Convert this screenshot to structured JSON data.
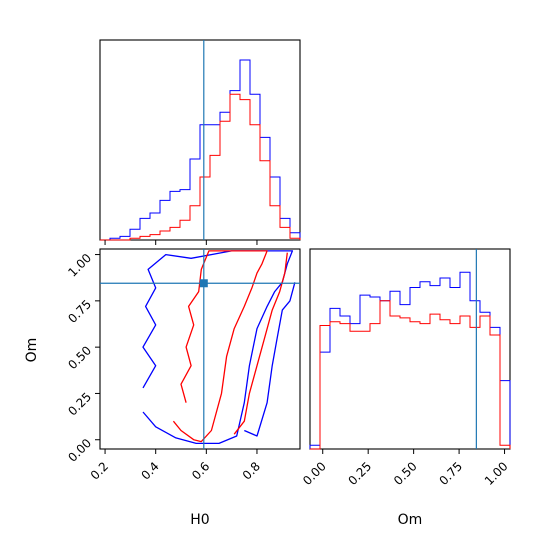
{
  "chart_data": {
    "type": "corner",
    "parameters": [
      "H0",
      "Om"
    ],
    "truths": {
      "H0": 0.59,
      "Om": 0.845
    },
    "colors": {
      "blue": "#0000ff",
      "red": "#ff0000",
      "truth": "#1f77b4"
    },
    "panels": [
      {
        "id": "hist_H0",
        "type": "histogram-step",
        "x": "H0",
        "xlim": [
          0.18,
          0.97
        ],
        "bin_edges": [
          0.18,
          0.2195,
          0.259,
          0.2985,
          0.338,
          0.3775,
          0.417,
          0.4565,
          0.496,
          0.5355,
          0.575,
          0.6145,
          0.654,
          0.6935,
          0.733,
          0.7725,
          0.812,
          0.8515,
          0.891,
          0.9305,
          0.97
        ],
        "series": [
          {
            "name": "",
            "color": "#0000ff",
            "values": [
              0,
              0.01,
              0.02,
              0.06,
              0.12,
              0.15,
              0.22,
              0.27,
              0.28,
              0.45,
              0.64,
              0.64,
              0.71,
              0.83,
              1.0,
              0.81,
              0.57,
              0.35,
              0.12,
              0.04
            ]
          },
          {
            "name": "",
            "color": "#ff0000",
            "values": [
              0,
              0,
              0,
              0.01,
              0.02,
              0.03,
              0.05,
              0.07,
              0.11,
              0.19,
              0.35,
              0.47,
              0.66,
              0.81,
              0.78,
              0.64,
              0.44,
              0.19,
              0.07,
              0.01
            ]
          }
        ]
      },
      {
        "id": "contour_H0_Om",
        "type": "contour",
        "x": "H0",
        "y": "Om",
        "xlim": [
          0.18,
          0.97
        ],
        "ylim": [
          -0.05,
          1.03
        ],
        "xticks": [
          "0.2",
          "0.4",
          "0.6",
          "0.8"
        ],
        "yticks": [
          "0.00",
          "0.25",
          "0.50",
          "0.75",
          "1.00"
        ],
        "series": [
          {
            "name": "",
            "color": "#0000ff",
            "levels": [
              [
                [
                  0.35,
                  0.15
                ],
                [
                  0.4,
                  0.07
                ],
                [
                  0.48,
                  0.01
                ],
                [
                  0.56,
                  -0.02
                ],
                [
                  0.65,
                  -0.02
                ],
                [
                  0.72,
                  0.02
                ],
                [
                  0.75,
                  0.2
                ],
                [
                  0.77,
                  0.4
                ],
                [
                  0.8,
                  0.6
                ],
                [
                  0.84,
                  0.72
                ],
                [
                  0.87,
                  0.8
                ],
                [
                  0.9,
                  0.85
                ],
                [
                  0.92,
                  0.95
                ],
                [
                  0.94,
                  1.02
                ],
                [
                  0.7,
                  1.02
                ],
                [
                  0.54,
                  0.98
                ],
                [
                  0.44,
                  1.0
                ],
                [
                  0.37,
                  0.92
                ],
                [
                  0.4,
                  0.82
                ],
                [
                  0.36,
                  0.72
                ],
                [
                  0.4,
                  0.62
                ],
                [
                  0.35,
                  0.5
                ],
                [
                  0.4,
                  0.4
                ],
                [
                  0.35,
                  0.28
                ]
              ],
              [
                [
                  0.75,
                  0.05
                ],
                [
                  0.8,
                  0.02
                ],
                [
                  0.84,
                  0.2
                ],
                [
                  0.86,
                  0.4
                ],
                [
                  0.88,
                  0.55
                ],
                [
                  0.9,
                  0.7
                ],
                [
                  0.93,
                  0.75
                ],
                [
                  0.95,
                  0.85
                ]
              ]
            ]
          },
          {
            "name": "",
            "color": "#ff0000",
            "levels": [
              [
                [
                  0.47,
                  0.1
                ],
                [
                  0.5,
                  0.05
                ],
                [
                  0.55,
                  0.0
                ],
                [
                  0.58,
                  -0.01
                ],
                [
                  0.62,
                  0.05
                ],
                [
                  0.66,
                  0.25
                ],
                [
                  0.68,
                  0.45
                ],
                [
                  0.71,
                  0.6
                ],
                [
                  0.75,
                  0.72
                ],
                [
                  0.78,
                  0.82
                ],
                [
                  0.8,
                  0.9
                ],
                [
                  0.82,
                  0.95
                ],
                [
                  0.84,
                  1.02
                ],
                [
                  0.61,
                  1.02
                ],
                [
                  0.58,
                  0.92
                ],
                [
                  0.57,
                  0.8
                ],
                [
                  0.53,
                  0.72
                ],
                [
                  0.55,
                  0.62
                ],
                [
                  0.52,
                  0.5
                ],
                [
                  0.54,
                  0.4
                ],
                [
                  0.5,
                  0.3
                ],
                [
                  0.52,
                  0.2
                ]
              ],
              [
                [
                  0.71,
                  0.03
                ],
                [
                  0.75,
                  0.1
                ],
                [
                  0.77,
                  0.25
                ],
                [
                  0.8,
                  0.4
                ],
                [
                  0.83,
                  0.55
                ],
                [
                  0.86,
                  0.7
                ],
                [
                  0.89,
                  0.8
                ],
                [
                  0.91,
                  0.9
                ],
                [
                  0.92,
                  1.01
                ]
              ]
            ]
          }
        ]
      },
      {
        "id": "hist_Om",
        "type": "histogram-step",
        "x": "Om",
        "xlim": [
          -0.07,
          1.03
        ],
        "xticks": [
          "0.00",
          "0.25",
          "0.50",
          "0.75",
          "1.00"
        ],
        "bin_edges": [
          -0.07,
          -0.015,
          0.04,
          0.095,
          0.15,
          0.205,
          0.26,
          0.315,
          0.37,
          0.425,
          0.48,
          0.535,
          0.59,
          0.645,
          0.7,
          0.755,
          0.81,
          0.865,
          0.92,
          0.975,
          1.03
        ],
        "series": [
          {
            "name": "",
            "color": "#0000ff",
            "values": [
              0.02,
              0.51,
              0.74,
              0.7,
              0.66,
              0.81,
              0.8,
              0.78,
              0.83,
              0.76,
              0.85,
              0.88,
              0.86,
              0.9,
              0.85,
              0.93,
              0.78,
              0.72,
              0.64,
              0.36
            ]
          },
          {
            "name": "",
            "color": "#ff0000",
            "values": [
              0,
              0.65,
              0.67,
              0.66,
              0.62,
              0.62,
              0.66,
              0.78,
              0.7,
              0.69,
              0.67,
              0.66,
              0.71,
              0.68,
              0.66,
              0.7,
              0.64,
              0.7,
              0.6,
              0.02
            ]
          }
        ]
      }
    ],
    "xlabels": {
      "H0": "H0",
      "Om": "Om"
    },
    "ylabel": "Om",
    "grid": false,
    "legend": "none"
  }
}
